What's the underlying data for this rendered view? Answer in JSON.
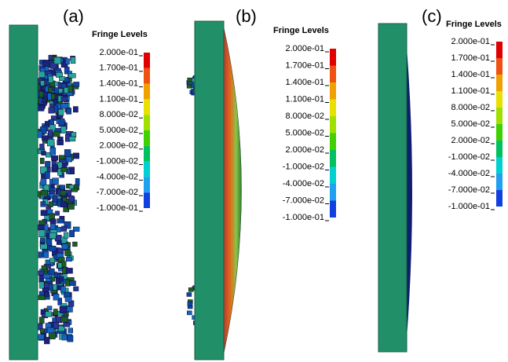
{
  "panels": [
    {
      "label": "(a)",
      "legend_title": "Fringe Levels",
      "levels": [
        "2.000e-01",
        "1.700e-01",
        "1.400e-01",
        "1.100e-01",
        "8.000e-02",
        "5.000e-02",
        "2.000e-02",
        "-1.000e-02",
        "-4.000e-02",
        "-7.000e-02",
        "-1.000e-01"
      ]
    },
    {
      "label": "(b)",
      "legend_title": "Fringe Levels",
      "levels": [
        "2.000e-01",
        "1.700e-01",
        "1.400e-01",
        "1.100e-01",
        "8.000e-02",
        "5.000e-02",
        "2.000e-02",
        "-1.000e-02",
        "-4.000e-02",
        "-7.000e-02",
        "-1.000e-01"
      ]
    },
    {
      "label": "(c)",
      "legend_title": "Fringe Levels",
      "levels": [
        "2.000e-01",
        "1.700e-01",
        "1.400e-01",
        "1.100e-01",
        "8.000e-02",
        "5.000e-02",
        "2.000e-02",
        "-1.000e-02",
        "-4.000e-02",
        "-7.000e-02",
        "-1.000e-01"
      ]
    }
  ]
}
